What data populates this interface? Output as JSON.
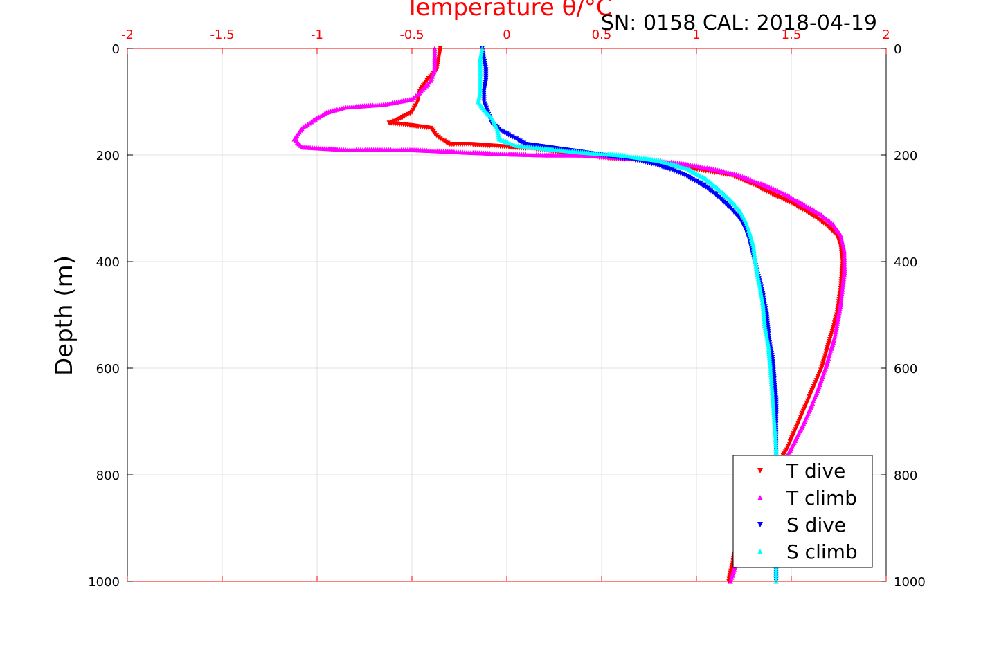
{
  "figure": {
    "title": "Temperature θ/°C",
    "subtitle": "SN: 0158  CAL: 2018-04-19"
  },
  "chart_data": {
    "type": "scatter",
    "title": "Temperature θ/°C",
    "subtitle": "SN: 0158  CAL: 2018-04-19",
    "xlabel": "Temperature θ/°C",
    "ylabel": "Depth (m)",
    "xlim": [
      -2,
      2
    ],
    "ylim": [
      0,
      1000
    ],
    "y_reversed": true,
    "x_axis_position": "top",
    "grid": true,
    "legend_position": "bottom-right",
    "x_ticks": [
      "-2",
      "-1.5",
      "-1",
      "-0.5",
      "0",
      "0.5",
      "1",
      "1.5",
      "2"
    ],
    "y_ticks": [
      "0",
      "200",
      "400",
      "600",
      "800",
      "1000"
    ],
    "series": [
      {
        "name": "T dive",
        "color": "#ff0000",
        "marker": "triangle-down",
        "points": [
          [
            -0.35,
            0
          ],
          [
            -0.36,
            20
          ],
          [
            -0.37,
            40
          ],
          [
            -0.42,
            60
          ],
          [
            -0.46,
            80
          ],
          [
            -0.47,
            100
          ],
          [
            -0.5,
            120
          ],
          [
            -0.58,
            135
          ],
          [
            -0.62,
            140
          ],
          [
            -0.5,
            145
          ],
          [
            -0.4,
            150
          ],
          [
            -0.38,
            160
          ],
          [
            -0.35,
            170
          ],
          [
            -0.3,
            180
          ],
          [
            -0.2,
            180
          ],
          [
            0.0,
            185
          ],
          [
            0.2,
            190
          ],
          [
            0.35,
            200
          ],
          [
            0.5,
            205
          ],
          [
            0.7,
            210
          ],
          [
            0.9,
            220
          ],
          [
            1.05,
            230
          ],
          [
            1.2,
            240
          ],
          [
            1.3,
            255
          ],
          [
            1.38,
            270
          ],
          [
            1.5,
            290
          ],
          [
            1.6,
            310
          ],
          [
            1.68,
            330
          ],
          [
            1.74,
            350
          ],
          [
            1.76,
            370
          ],
          [
            1.77,
            400
          ],
          [
            1.76,
            450
          ],
          [
            1.74,
            500
          ],
          [
            1.7,
            550
          ],
          [
            1.66,
            600
          ],
          [
            1.6,
            650
          ],
          [
            1.54,
            700
          ],
          [
            1.48,
            750
          ],
          [
            1.4,
            800
          ],
          [
            1.32,
            850
          ],
          [
            1.25,
            900
          ],
          [
            1.2,
            950
          ],
          [
            1.17,
            1000
          ]
        ]
      },
      {
        "name": "T climb",
        "color": "#ff00ff",
        "marker": "triangle-up",
        "points": [
          [
            -0.38,
            0
          ],
          [
            -0.38,
            20
          ],
          [
            -0.38,
            40
          ],
          [
            -0.4,
            60
          ],
          [
            -0.45,
            80
          ],
          [
            -0.5,
            95
          ],
          [
            -0.65,
            105
          ],
          [
            -0.85,
            110
          ],
          [
            -0.95,
            120
          ],
          [
            -1.02,
            135
          ],
          [
            -1.08,
            150
          ],
          [
            -1.12,
            170
          ],
          [
            -1.08,
            185
          ],
          [
            -0.85,
            190
          ],
          [
            -0.6,
            190
          ],
          [
            -0.5,
            190
          ],
          [
            -0.2,
            195
          ],
          [
            0.0,
            198
          ],
          [
            0.2,
            200
          ],
          [
            0.4,
            200
          ],
          [
            0.6,
            205
          ],
          [
            0.8,
            210
          ],
          [
            1.0,
            220
          ],
          [
            1.2,
            235
          ],
          [
            1.35,
            255
          ],
          [
            1.45,
            270
          ],
          [
            1.55,
            290
          ],
          [
            1.65,
            310
          ],
          [
            1.72,
            330
          ],
          [
            1.76,
            350
          ],
          [
            1.78,
            380
          ],
          [
            1.78,
            420
          ],
          [
            1.76,
            480
          ],
          [
            1.73,
            540
          ],
          [
            1.68,
            600
          ],
          [
            1.63,
            650
          ],
          [
            1.57,
            700
          ],
          [
            1.5,
            750
          ],
          [
            1.42,
            800
          ],
          [
            1.35,
            850
          ],
          [
            1.28,
            900
          ],
          [
            1.22,
            950
          ],
          [
            1.18,
            1000
          ]
        ]
      },
      {
        "name": "S dive",
        "color": "#0000ff",
        "marker": "triangle-down",
        "points": [
          [
            -0.13,
            0
          ],
          [
            -0.12,
            20
          ],
          [
            -0.11,
            40
          ],
          [
            -0.11,
            60
          ],
          [
            -0.12,
            80
          ],
          [
            -0.12,
            100
          ],
          [
            -0.1,
            120
          ],
          [
            -0.08,
            140
          ],
          [
            -0.03,
            155
          ],
          [
            0.05,
            170
          ],
          [
            0.1,
            180
          ],
          [
            0.3,
            190
          ],
          [
            0.5,
            200
          ],
          [
            0.7,
            210
          ],
          [
            0.85,
            225
          ],
          [
            0.95,
            240
          ],
          [
            1.05,
            260
          ],
          [
            1.12,
            280
          ],
          [
            1.18,
            300
          ],
          [
            1.23,
            320
          ],
          [
            1.26,
            340
          ],
          [
            1.28,
            360
          ],
          [
            1.3,
            390
          ],
          [
            1.32,
            420
          ],
          [
            1.35,
            460
          ],
          [
            1.37,
            500
          ],
          [
            1.38,
            540
          ],
          [
            1.4,
            580
          ],
          [
            1.41,
            620
          ],
          [
            1.42,
            660
          ],
          [
            1.42,
            700
          ],
          [
            1.42,
            750
          ],
          [
            1.42,
            800
          ],
          [
            1.42,
            850
          ],
          [
            1.42,
            900
          ],
          [
            1.42,
            950
          ],
          [
            1.42,
            1000
          ]
        ]
      },
      {
        "name": "S climb",
        "color": "#00ffff",
        "marker": "triangle-up",
        "points": [
          [
            -0.13,
            0
          ],
          [
            -0.14,
            20
          ],
          [
            -0.14,
            40
          ],
          [
            -0.14,
            60
          ],
          [
            -0.14,
            80
          ],
          [
            -0.15,
            100
          ],
          [
            -0.12,
            115
          ],
          [
            -0.08,
            130
          ],
          [
            -0.05,
            150
          ],
          [
            -0.04,
            170
          ],
          [
            0.05,
            182
          ],
          [
            0.2,
            188
          ],
          [
            0.4,
            195
          ],
          [
            0.6,
            200
          ],
          [
            0.8,
            210
          ],
          [
            0.95,
            225
          ],
          [
            1.05,
            245
          ],
          [
            1.12,
            265
          ],
          [
            1.18,
            285
          ],
          [
            1.23,
            305
          ],
          [
            1.26,
            325
          ],
          [
            1.28,
            345
          ],
          [
            1.3,
            370
          ],
          [
            1.31,
            400
          ],
          [
            1.33,
            440
          ],
          [
            1.35,
            480
          ],
          [
            1.36,
            520
          ],
          [
            1.38,
            560
          ],
          [
            1.39,
            600
          ],
          [
            1.4,
            650
          ],
          [
            1.41,
            700
          ],
          [
            1.42,
            750
          ],
          [
            1.42,
            800
          ],
          [
            1.42,
            850
          ],
          [
            1.42,
            900
          ],
          [
            1.42,
            950
          ],
          [
            1.42,
            1000
          ]
        ]
      }
    ]
  }
}
